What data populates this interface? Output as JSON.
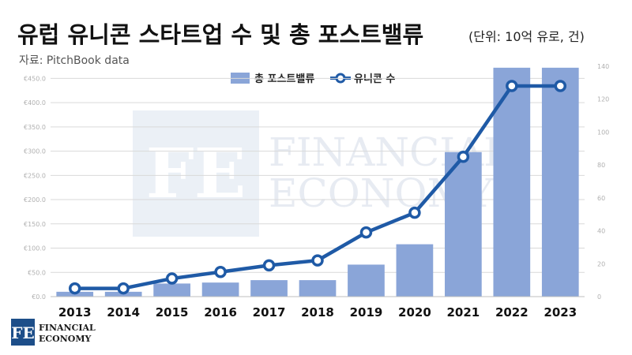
{
  "header": {
    "title": "유럽 유니콘 스타트업 수 및 총 포스트밸류",
    "unit_note": "(단위: 10억 유로, 건)",
    "source": "자료: PitchBook data"
  },
  "brand": {
    "logo_mark": "FE",
    "name_line1": "FINANCIAL",
    "name_line2": "ECONOMY",
    "accent_color": "#1d4e89"
  },
  "watermark": {
    "line1": "FINANCIAL",
    "line2": "ECONOMY"
  },
  "chart_data": {
    "type": "bar+line",
    "categories": [
      "2013",
      "2014",
      "2015",
      "2016",
      "2017",
      "2018",
      "2019",
      "2020",
      "2021",
      "2022",
      "2023"
    ],
    "series": [
      {
        "name": "총 포스트밸류",
        "kind": "bar",
        "axis": "left",
        "color": "#8aa5d8",
        "values": [
          10,
          10,
          27,
          29,
          34,
          34,
          66,
          108,
          298,
          472,
          472
        ]
      },
      {
        "name": "유니콘 수",
        "kind": "line",
        "axis": "right",
        "color": "#1f5aa6",
        "values": [
          5,
          5,
          11,
          15,
          19,
          22,
          39,
          51,
          85,
          128,
          128
        ]
      }
    ],
    "y_left": {
      "min": 0,
      "max": 475,
      "ticks": [
        0,
        50,
        100,
        150,
        200,
        250,
        300,
        350,
        400,
        450
      ],
      "tick_labels": [
        "€0.0",
        "€50.0",
        "€100.0",
        "€150.0",
        "€200.0",
        "€250.0",
        "€300.0",
        "€350.0",
        "€400.0",
        "€450.0"
      ]
    },
    "y_right": {
      "min": 0,
      "max": 140,
      "ticks": [
        0,
        20,
        40,
        60,
        80,
        100,
        120,
        140
      ],
      "tick_labels": [
        "0",
        "20",
        "40",
        "60",
        "80",
        "100",
        "120",
        "140"
      ]
    },
    "grid": true,
    "legend": "top-center"
  }
}
